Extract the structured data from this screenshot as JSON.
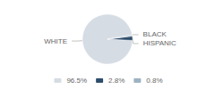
{
  "chart_data": {
    "type": "pie",
    "categories": [
      "WHITE",
      "HISPANIC",
      "BLACK"
    ],
    "values": [
      96.5,
      2.8,
      0.8
    ],
    "value_labels": [
      "96.5%",
      "2.8%",
      "0.8%"
    ],
    "colors": [
      "#d6dce4",
      "#2e4d6b",
      "#9eb3c2"
    ],
    "legend": "bottom"
  }
}
